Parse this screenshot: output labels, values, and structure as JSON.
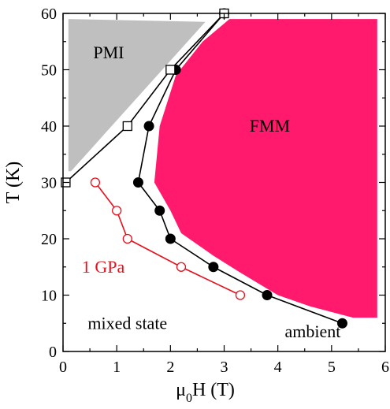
{
  "chart_data": {
    "type": "scatter",
    "title": "",
    "xlabel_main": "μ",
    "xlabel_sub": "0",
    "xlabel_rest": "H  (T)",
    "ylabel": "T  (K)",
    "xlim": [
      0,
      6
    ],
    "ylim": [
      0,
      60
    ],
    "xticks": [
      0,
      1,
      2,
      3,
      4,
      5,
      6
    ],
    "yticks": [
      0,
      10,
      20,
      30,
      40,
      50,
      60
    ],
    "grid": false,
    "regions": [
      {
        "name": "PMI",
        "label": "PMI",
        "color": "#bfbfbf",
        "polygon": [
          [
            0.1,
            59
          ],
          [
            2.65,
            58.5
          ],
          [
            0.15,
            32
          ],
          [
            0.1,
            32
          ]
        ],
        "label_at": [
          0.85,
          52
        ]
      },
      {
        "name": "FMM",
        "label": "FMM",
        "color": "#ff1a6e",
        "polygon": [
          [
            3.1,
            59
          ],
          [
            5.85,
            59
          ],
          [
            5.85,
            6
          ],
          [
            5.4,
            6
          ],
          [
            4.6,
            8
          ],
          [
            4.0,
            10
          ],
          [
            3.3,
            14
          ],
          [
            2.8,
            17
          ],
          [
            2.2,
            21
          ],
          [
            2.0,
            25
          ],
          [
            1.7,
            30
          ],
          [
            1.8,
            40
          ],
          [
            2.1,
            49
          ],
          [
            2.6,
            55
          ],
          [
            3.1,
            59
          ]
        ],
        "label_at": [
          3.85,
          39
        ]
      }
    ],
    "series": [
      {
        "name": "ambient",
        "label": "ambient",
        "color": "#000000",
        "marker": "filled-circle",
        "x": [
          5.2,
          3.8,
          2.8,
          2.0,
          1.8,
          1.4,
          1.6,
          2.1,
          3.0
        ],
        "y": [
          5,
          10,
          15,
          20,
          25,
          30,
          40,
          50,
          60
        ],
        "label_at": [
          4.65,
          2.5
        ]
      },
      {
        "name": "1 GPa",
        "label": "1 GPa",
        "color": "#e8101c",
        "marker": "open-circle",
        "x": [
          3.3,
          2.2,
          1.2,
          1.0,
          0.6
        ],
        "y": [
          10,
          15,
          20,
          25,
          30
        ],
        "label_at": [
          0.75,
          14
        ]
      },
      {
        "name": "boundary",
        "color": "#000000",
        "marker": "open-square",
        "x": [
          0.05,
          1.2,
          2.0,
          3.0
        ],
        "y": [
          30,
          40,
          50,
          60
        ]
      }
    ],
    "annotations": [
      {
        "text": "mixed state",
        "at": [
          1.2,
          4
        ]
      }
    ]
  }
}
